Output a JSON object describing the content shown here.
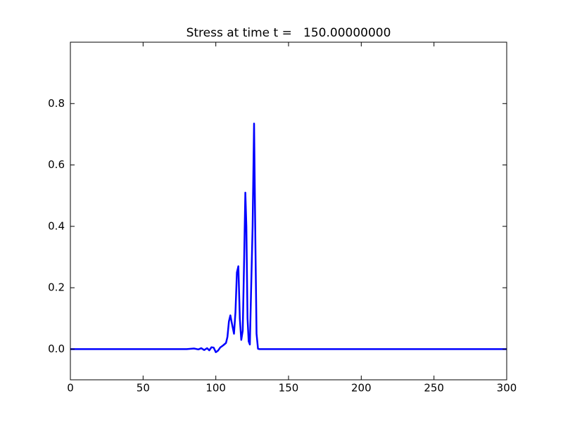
{
  "chart_data": {
    "type": "line",
    "title": "Stress at time t =   150.00000000",
    "x": [
      0,
      80,
      85,
      88,
      90,
      92,
      94,
      95.5,
      97,
      98.5,
      100,
      101.5,
      103,
      105,
      107,
      108,
      109,
      110,
      111,
      112.5,
      113.5,
      114.5,
      115.5,
      116.5,
      117.5,
      118.5,
      119.5,
      120.3,
      121,
      121.8,
      122.6,
      123.4,
      124.3,
      125.3,
      126.3,
      127.2,
      128,
      129,
      130,
      300
    ],
    "series": [
      {
        "color": "#0000ff",
        "values": [
          0,
          0,
          0.002,
          -0.001,
          0.003,
          -0.003,
          0.003,
          -0.004,
          0.006,
          0.005,
          -0.01,
          -0.005,
          0.005,
          0.012,
          0.02,
          0.04,
          0.09,
          0.11,
          0.085,
          0.05,
          0.12,
          0.25,
          0.27,
          0.1,
          0.03,
          0.06,
          0.3,
          0.51,
          0.4,
          0.1,
          0.025,
          0.015,
          0.2,
          0.4,
          0.735,
          0.35,
          0.05,
          0.001,
          0,
          0
        ]
      }
    ],
    "xlim": [
      0,
      300
    ],
    "xticks": [
      0,
      50,
      100,
      150,
      200,
      250,
      300
    ],
    "ylim": [
      -0.1,
      1.0
    ],
    "yticks": [
      {
        "value": 0,
        "label": "0.0"
      },
      0.2,
      0.4,
      0.6,
      0.8
    ],
    "grid": false
  }
}
